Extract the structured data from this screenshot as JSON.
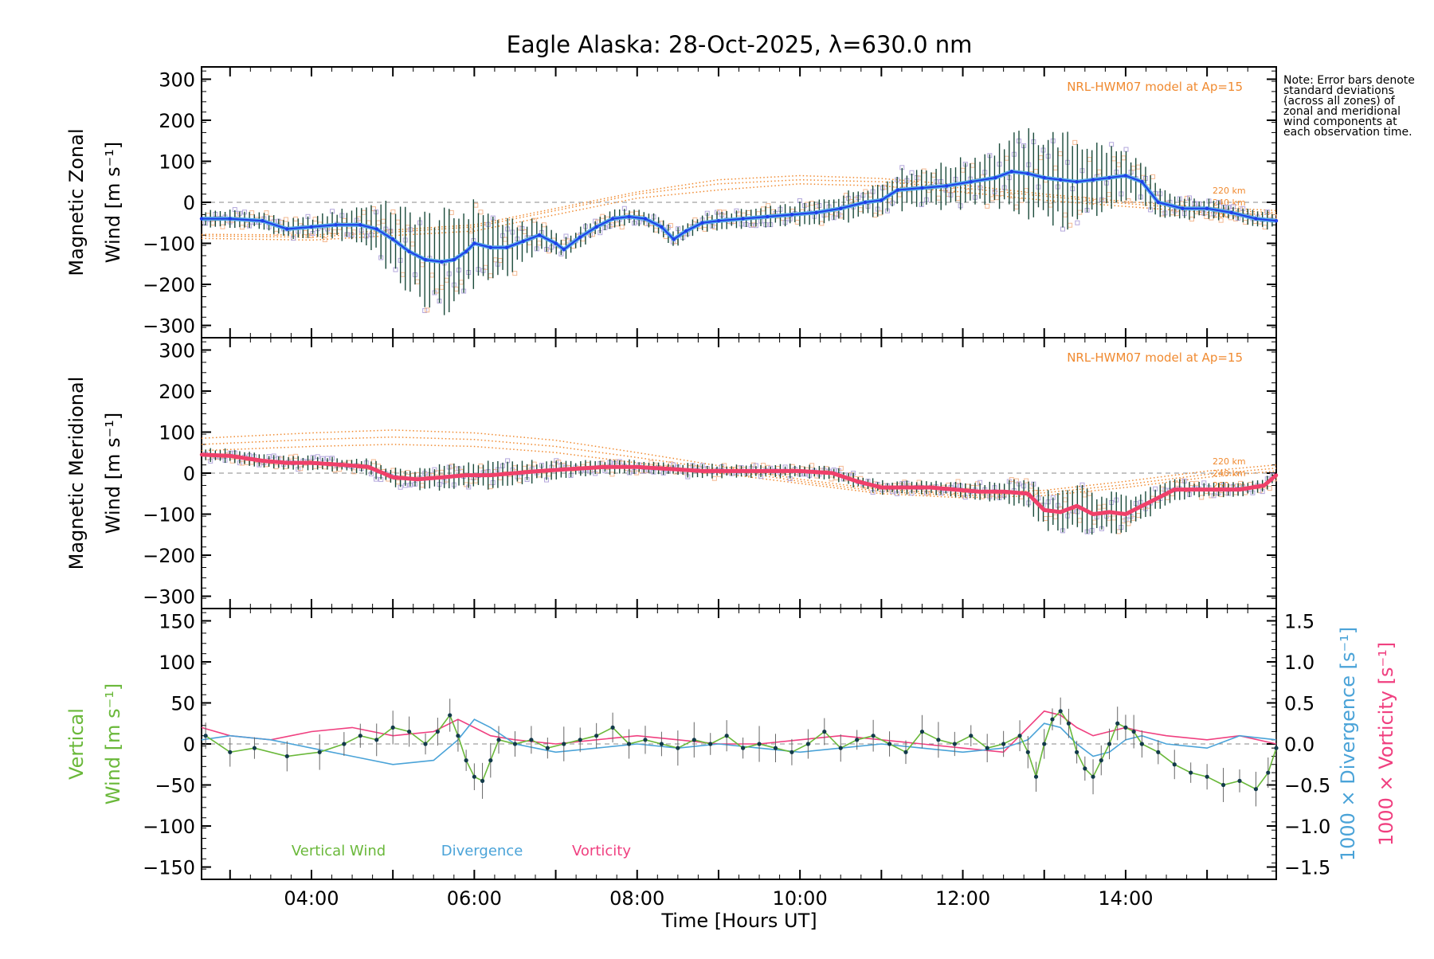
{
  "title": "Eagle Alaska: 28-Oct-2025, λ=630.0 nm",
  "note": "Note: Error bars denote standard deviations (across all zones) of zonal and meridional wind components at each observation time.",
  "x_axis": {
    "label": "Time [Hours UT]",
    "range": [
      2.65,
      15.85
    ],
    "ticks": [
      4,
      6,
      8,
      10,
      12,
      14
    ],
    "tick_labels": [
      "04:00",
      "06:00",
      "08:00",
      "10:00",
      "12:00",
      "14:00"
    ]
  },
  "colors": {
    "zonal": "#1f3ee8",
    "zonal_light": "#55a8e8",
    "meridional": "#f0406a",
    "vertical": "#6ab83a",
    "divergence": "#4aa3d8",
    "vorticity": "#f04080",
    "model": "#f08a30",
    "zone_box": "#b3a7dc",
    "errorbar": "#1a4a3a"
  },
  "chart_data": [
    {
      "type": "line",
      "panel": "zonal",
      "ylabel_line1": "Magnetic Zonal",
      "ylabel_line2": "Wind [m s⁻¹]",
      "ylim": [
        -330,
        330
      ],
      "yticks": [
        300,
        200,
        100,
        0,
        -100,
        -200,
        -300
      ],
      "ytick_labels": [
        "300",
        "200",
        "100",
        "0",
        "−100",
        "−200",
        "−300"
      ],
      "model_label": "NRL-HWM07 model at Ap=15",
      "model_altitudes": [
        "220 km",
        "240 km",
        "260 km"
      ],
      "series": [
        {
          "name": "Zonal wind",
          "x": [
            2.65,
            3.0,
            3.4,
            3.7,
            4.0,
            4.3,
            4.6,
            4.8,
            5.0,
            5.2,
            5.4,
            5.6,
            5.75,
            5.9,
            6.0,
            6.2,
            6.4,
            6.6,
            6.8,
            7.0,
            7.1,
            7.3,
            7.5,
            7.7,
            7.9,
            8.1,
            8.3,
            8.45,
            8.6,
            8.8,
            9.0,
            9.3,
            9.6,
            9.9,
            10.2,
            10.5,
            10.8,
            11.0,
            11.2,
            11.5,
            11.8,
            12.1,
            12.4,
            12.6,
            12.8,
            13.0,
            13.2,
            13.4,
            13.6,
            13.8,
            14.0,
            14.2,
            14.4,
            14.7,
            15.0,
            15.3,
            15.6,
            15.85
          ],
          "values": [
            -40,
            -40,
            -45,
            -65,
            -60,
            -55,
            -55,
            -65,
            -90,
            -120,
            -140,
            -145,
            -140,
            -120,
            -100,
            -110,
            -110,
            -95,
            -80,
            -100,
            -115,
            -85,
            -60,
            -40,
            -35,
            -40,
            -60,
            -90,
            -70,
            -50,
            -45,
            -40,
            -35,
            -30,
            -25,
            -15,
            0,
            5,
            30,
            35,
            40,
            50,
            60,
            75,
            70,
            60,
            55,
            50,
            55,
            60,
            65,
            50,
            0,
            -15,
            -15,
            -25,
            -40,
            -45
          ]
        }
      ],
      "model_series": [
        {
          "name": "220 km",
          "x": [
            2.65,
            4,
            6,
            8,
            9,
            10,
            11,
            12,
            13,
            14,
            15,
            15.85
          ],
          "values": [
            -88,
            -92,
            -70,
            10,
            30,
            45,
            40,
            25,
            5,
            -10,
            -25,
            -30
          ]
        },
        {
          "name": "240 km",
          "x": [
            2.65,
            4,
            6,
            8,
            9,
            10,
            11,
            12,
            13,
            14,
            15,
            15.85
          ],
          "values": [
            -82,
            -85,
            -60,
            20,
            45,
            55,
            50,
            35,
            15,
            -3,
            -18,
            -25
          ]
        },
        {
          "name": "260 km",
          "x": [
            2.65,
            4,
            6,
            8,
            9,
            10,
            11,
            12,
            13,
            14,
            15,
            15.85
          ],
          "values": [
            -78,
            -80,
            -55,
            25,
            55,
            65,
            58,
            42,
            20,
            2,
            -12,
            -20
          ]
        }
      ]
    },
    {
      "type": "line",
      "panel": "meridional",
      "ylabel_line1": "Magnetic Meridional",
      "ylabel_line2": "Wind [m s⁻¹]",
      "ylim": [
        -330,
        330
      ],
      "yticks": [
        300,
        200,
        100,
        0,
        -100,
        -200,
        -300
      ],
      "ytick_labels": [
        "300",
        "200",
        "100",
        "0",
        "−100",
        "−200",
        "−300"
      ],
      "model_label": "NRL-HWM07 model at Ap=15",
      "model_altitudes": [
        "220 km",
        "240 km",
        "260 km"
      ],
      "series": [
        {
          "name": "Meridional wind",
          "x": [
            2.65,
            3.0,
            3.4,
            3.7,
            4.0,
            4.4,
            4.7,
            5.0,
            5.3,
            5.6,
            5.9,
            6.2,
            6.5,
            6.8,
            7.2,
            7.6,
            8.0,
            8.4,
            8.8,
            9.2,
            9.6,
            10.0,
            10.4,
            10.7,
            11.0,
            11.3,
            11.6,
            11.9,
            12.2,
            12.5,
            12.8,
            13.0,
            13.2,
            13.4,
            13.6,
            13.8,
            14.0,
            14.3,
            14.6,
            15.0,
            15.4,
            15.7,
            15.85
          ],
          "values": [
            45,
            42,
            30,
            25,
            25,
            20,
            15,
            -10,
            -15,
            -10,
            -5,
            -5,
            0,
            5,
            10,
            15,
            15,
            10,
            5,
            5,
            5,
            5,
            0,
            -20,
            -35,
            -35,
            -35,
            -40,
            -45,
            -45,
            -50,
            -90,
            -95,
            -80,
            -100,
            -95,
            -100,
            -70,
            -40,
            -40,
            -40,
            -30,
            -5
          ]
        }
      ],
      "model_series": [
        {
          "name": "220 km",
          "x": [
            2.65,
            4,
            5,
            6,
            7,
            8,
            9,
            10,
            11,
            12,
            13,
            14,
            15,
            15.85
          ],
          "values": [
            55,
            65,
            70,
            65,
            50,
            25,
            0,
            -25,
            -50,
            -60,
            -55,
            -35,
            -10,
            5
          ]
        },
        {
          "name": "240 km",
          "x": [
            2.65,
            4,
            5,
            6,
            7,
            8,
            9,
            10,
            11,
            12,
            13,
            14,
            15,
            15.85
          ],
          "values": [
            70,
            82,
            88,
            82,
            65,
            38,
            10,
            -20,
            -45,
            -55,
            -48,
            -28,
            -3,
            12
          ]
        },
        {
          "name": "260 km",
          "x": [
            2.65,
            4,
            5,
            6,
            7,
            8,
            9,
            10,
            11,
            12,
            13,
            14,
            15,
            15.85
          ],
          "values": [
            85,
            98,
            105,
            98,
            80,
            50,
            18,
            -15,
            -40,
            -50,
            -42,
            -20,
            5,
            20
          ]
        }
      ]
    },
    {
      "type": "line",
      "panel": "vertical",
      "ylabel_line1": "Vertical",
      "ylabel_line2": "Wind [m s⁻¹]",
      "ylim": [
        -165,
        165
      ],
      "yticks": [
        150,
        100,
        50,
        0,
        -50,
        -100,
        -150
      ],
      "ytick_labels": [
        "150",
        "100",
        "50",
        "0",
        "−50",
        "−100",
        "−150"
      ],
      "y2label_divergence": "1000 × Divergence [s⁻¹]",
      "y2label_vorticity": "1000 × Vorticity [s⁻¹]",
      "y2lim": [
        -1.65,
        1.65
      ],
      "y2ticks": [
        1.5,
        1.0,
        0.5,
        0.0,
        -0.5,
        -1.0,
        -1.5
      ],
      "y2tick_labels": [
        "1.5",
        "1.0",
        "0.5",
        "0.0",
        "−0.5",
        "−1.0",
        "−1.5"
      ],
      "legend": [
        "Vertical Wind",
        "Divergence",
        "Vorticity"
      ],
      "series": [
        {
          "name": "Vertical Wind",
          "x": [
            2.7,
            3.0,
            3.3,
            3.7,
            4.1,
            4.4,
            4.6,
            4.8,
            5.0,
            5.2,
            5.4,
            5.55,
            5.7,
            5.8,
            5.9,
            6.0,
            6.1,
            6.2,
            6.3,
            6.5,
            6.7,
            6.9,
            7.1,
            7.3,
            7.5,
            7.7,
            7.9,
            8.1,
            8.3,
            8.5,
            8.7,
            8.9,
            9.1,
            9.3,
            9.5,
            9.7,
            9.9,
            10.1,
            10.3,
            10.5,
            10.7,
            10.9,
            11.1,
            11.3,
            11.5,
            11.7,
            11.9,
            12.1,
            12.3,
            12.5,
            12.7,
            12.8,
            12.9,
            13.0,
            13.1,
            13.2,
            13.3,
            13.4,
            13.5,
            13.6,
            13.7,
            13.8,
            13.9,
            14.0,
            14.1,
            14.2,
            14.4,
            14.6,
            14.8,
            15.0,
            15.2,
            15.4,
            15.6,
            15.75,
            15.85
          ],
          "values": [
            10,
            -10,
            -5,
            -15,
            -10,
            0,
            10,
            5,
            20,
            15,
            0,
            15,
            35,
            10,
            -20,
            -40,
            -45,
            -20,
            5,
            0,
            5,
            -5,
            0,
            5,
            10,
            20,
            0,
            5,
            0,
            -5,
            5,
            0,
            10,
            -5,
            0,
            -5,
            -10,
            0,
            15,
            -5,
            5,
            10,
            0,
            -10,
            15,
            5,
            0,
            10,
            -5,
            0,
            10,
            -10,
            -40,
            0,
            30,
            40,
            25,
            -10,
            -30,
            -40,
            -20,
            0,
            25,
            20,
            15,
            0,
            -10,
            -25,
            -35,
            -40,
            -50,
            -45,
            -55,
            -35,
            -5
          ]
        },
        {
          "name": "Divergence",
          "axis": "right",
          "x": [
            2.65,
            3.0,
            3.5,
            4.0,
            4.5,
            5.0,
            5.5,
            5.8,
            6.0,
            6.2,
            6.5,
            7.0,
            7.5,
            8.0,
            8.5,
            9.0,
            9.5,
            10.0,
            10.5,
            11.0,
            11.5,
            12.0,
            12.5,
            12.8,
            13.0,
            13.2,
            13.4,
            13.6,
            13.8,
            14.0,
            14.2,
            14.5,
            15.0,
            15.4,
            15.85
          ],
          "values": [
            0.05,
            0.1,
            0.05,
            -0.05,
            -0.15,
            -0.25,
            -0.2,
            0.05,
            0.3,
            0.2,
            0.0,
            -0.1,
            -0.05,
            0.0,
            -0.05,
            0.0,
            -0.05,
            -0.1,
            -0.05,
            0.0,
            -0.05,
            -0.1,
            -0.05,
            0.05,
            0.25,
            0.2,
            0.0,
            -0.15,
            -0.1,
            0.05,
            0.1,
            0.0,
            -0.05,
            0.1,
            0.05
          ]
        },
        {
          "name": "Vorticity",
          "axis": "right",
          "x": [
            2.65,
            3.0,
            3.5,
            4.0,
            4.5,
            5.0,
            5.5,
            5.8,
            6.0,
            6.2,
            6.5,
            7.0,
            7.5,
            8.0,
            8.5,
            9.0,
            9.5,
            10.0,
            10.5,
            11.0,
            11.5,
            12.0,
            12.5,
            12.8,
            13.0,
            13.2,
            13.4,
            13.6,
            13.8,
            14.0,
            14.2,
            14.5,
            15.0,
            15.4,
            15.85
          ],
          "values": [
            0.2,
            0.1,
            0.05,
            0.15,
            0.2,
            0.1,
            0.15,
            0.3,
            0.2,
            0.1,
            0.05,
            0.0,
            0.05,
            0.1,
            0.05,
            0.0,
            0.0,
            0.05,
            0.1,
            0.05,
            0.0,
            -0.05,
            -0.1,
            0.2,
            0.4,
            0.35,
            0.2,
            0.1,
            0.15,
            0.2,
            0.15,
            0.1,
            0.05,
            0.1,
            0.0
          ]
        }
      ]
    }
  ]
}
